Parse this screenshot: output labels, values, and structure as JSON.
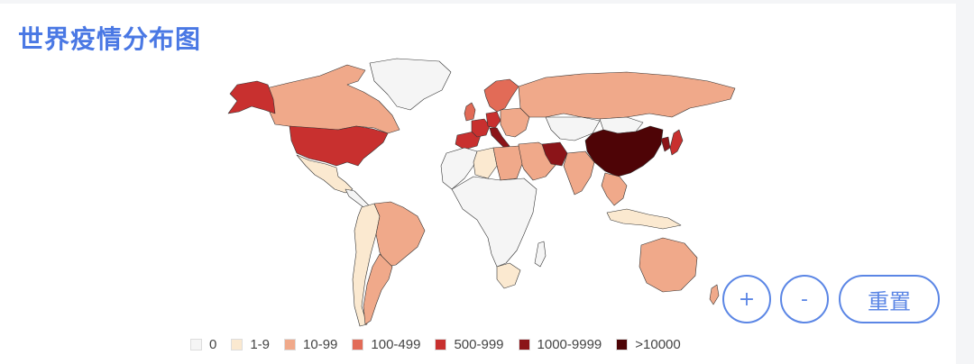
{
  "page": {
    "title": "世界疫情分布图"
  },
  "controls": {
    "zoom_in": "+",
    "zoom_out": "-",
    "reset": "重置"
  },
  "legend": [
    {
      "label": "0",
      "color": "#f5f5f5"
    },
    {
      "label": "1-9",
      "color": "#fbe9d0"
    },
    {
      "label": "10-99",
      "color": "#f0a98a"
    },
    {
      "label": "100-499",
      "color": "#e26b57"
    },
    {
      "label": "500-999",
      "color": "#c8302f"
    },
    {
      "label": "1000-9999",
      "color": "#8b1418"
    },
    {
      "label": ">10000",
      "color": "#4e0406"
    }
  ],
  "regions": [
    {
      "name": "china",
      "color": "#4e0406"
    },
    {
      "name": "korea",
      "color": "#8b1418"
    },
    {
      "name": "japan",
      "color": "#c8302f"
    },
    {
      "name": "iran",
      "color": "#8b1418"
    },
    {
      "name": "italy",
      "color": "#8b1418"
    },
    {
      "name": "spain",
      "color": "#c8302f"
    },
    {
      "name": "france",
      "color": "#c8302f"
    },
    {
      "name": "germany",
      "color": "#c8302f"
    },
    {
      "name": "usa",
      "color": "#c8302f"
    },
    {
      "name": "alaska",
      "color": "#c8302f"
    },
    {
      "name": "canada",
      "color": "#f0a98a"
    },
    {
      "name": "greenland",
      "color": "#f5f5f5"
    },
    {
      "name": "russia",
      "color": "#f0a98a"
    },
    {
      "name": "scandinavia",
      "color": "#e26b57"
    },
    {
      "name": "uk",
      "color": "#e26b57"
    },
    {
      "name": "europe-east",
      "color": "#f0a98a"
    },
    {
      "name": "middle-east",
      "color": "#f0a98a"
    },
    {
      "name": "india",
      "color": "#f0a98a"
    },
    {
      "name": "central-asia",
      "color": "#f5f5f5"
    },
    {
      "name": "mongolia",
      "color": "#f5f5f5"
    },
    {
      "name": "southeast-asia",
      "color": "#f0a98a"
    },
    {
      "name": "indonesia",
      "color": "#fbe9d0"
    },
    {
      "name": "australia",
      "color": "#f0a98a"
    },
    {
      "name": "mexico",
      "color": "#fbe9d0"
    },
    {
      "name": "central-america",
      "color": "#f5f5f5"
    },
    {
      "name": "brazil",
      "color": "#f0a98a"
    },
    {
      "name": "south-america-west",
      "color": "#fbe9d0"
    },
    {
      "name": "argentina",
      "color": "#f0a98a"
    },
    {
      "name": "north-africa",
      "color": "#f5f5f5"
    },
    {
      "name": "egypt",
      "color": "#f0a98a"
    },
    {
      "name": "algeria",
      "color": "#fbe9d0"
    },
    {
      "name": "africa",
      "color": "#f5f5f5"
    },
    {
      "name": "south-africa",
      "color": "#fbe9d0"
    },
    {
      "name": "madagascar",
      "color": "#f5f5f5"
    },
    {
      "name": "new-zealand",
      "color": "#f0a98a"
    }
  ]
}
